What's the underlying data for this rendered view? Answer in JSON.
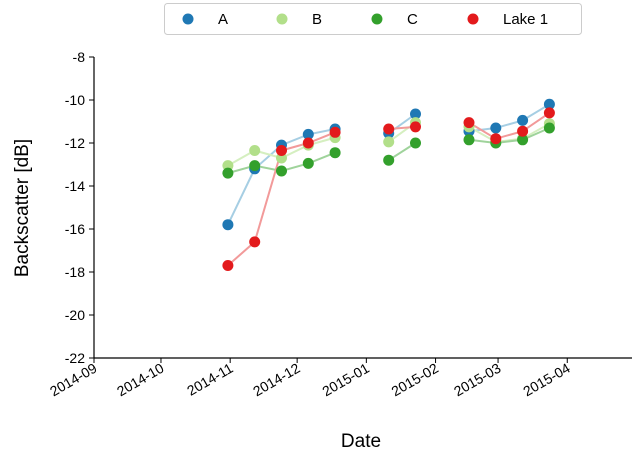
{
  "chart_data": {
    "type": "line",
    "title": "",
    "xlabel": "Date",
    "ylabel": "Backscatter [dB]",
    "ylim": [
      -22,
      -8
    ],
    "yticks": [
      -22,
      -20,
      -18,
      -16,
      -14,
      -12,
      -10,
      -8
    ],
    "xlim": [
      "2014-09-01",
      "2015-04-30"
    ],
    "xticks": [
      "2014-09",
      "2014-10",
      "2014-11",
      "2014-12",
      "2015-01",
      "2015-02",
      "2015-03",
      "2015-04"
    ],
    "grid": false,
    "legend_position": "top-center",
    "series": [
      {
        "name": "A",
        "color": "#1f78b4",
        "line_color": "#a6cee3",
        "points": [
          {
            "x": "2014-10-31",
            "y": -15.8
          },
          {
            "x": "2014-11-12",
            "y": -13.2
          },
          {
            "x": "2014-11-24",
            "y": -12.1
          },
          {
            "x": "2014-12-06",
            "y": -11.6
          },
          {
            "x": "2014-12-18",
            "y": -11.35
          },
          null,
          {
            "x": "2015-01-11",
            "y": -11.55
          },
          {
            "x": "2015-01-23",
            "y": -10.65
          },
          null,
          {
            "x": "2015-02-16",
            "y": -11.45
          },
          {
            "x": "2015-02-28",
            "y": -11.3
          },
          {
            "x": "2015-03-12",
            "y": -10.95
          },
          {
            "x": "2015-03-24",
            "y": -10.2
          }
        ]
      },
      {
        "name": "B",
        "color": "#b2df8a",
        "line_color": "#d5efc0",
        "points": [
          {
            "x": "2014-10-31",
            "y": -13.05
          },
          {
            "x": "2014-11-12",
            "y": -12.35
          },
          {
            "x": "2014-11-24",
            "y": -12.7
          },
          {
            "x": "2014-12-06",
            "y": -12.1
          },
          {
            "x": "2014-12-18",
            "y": -11.75
          },
          null,
          {
            "x": "2015-01-11",
            "y": -11.95
          },
          {
            "x": "2015-01-23",
            "y": -11.05
          },
          null,
          {
            "x": "2015-02-16",
            "y": -11.25
          },
          {
            "x": "2015-02-28",
            "y": -11.95
          },
          {
            "x": "2015-03-12",
            "y": -11.8
          },
          {
            "x": "2015-03-24",
            "y": -11.1
          }
        ]
      },
      {
        "name": "C",
        "color": "#33a02c",
        "line_color": "#9fd39b",
        "points": [
          {
            "x": "2014-10-31",
            "y": -13.4
          },
          {
            "x": "2014-11-12",
            "y": -13.05
          },
          {
            "x": "2014-11-24",
            "y": -13.3
          },
          {
            "x": "2014-12-06",
            "y": -12.95
          },
          {
            "x": "2014-12-18",
            "y": -12.45
          },
          null,
          {
            "x": "2015-01-11",
            "y": -12.8
          },
          {
            "x": "2015-01-23",
            "y": -12.0
          },
          null,
          {
            "x": "2015-02-16",
            "y": -11.85
          },
          {
            "x": "2015-02-28",
            "y": -12.0
          },
          {
            "x": "2015-03-12",
            "y": -11.85
          },
          {
            "x": "2015-03-24",
            "y": -11.3
          }
        ]
      },
      {
        "name": "Lake  1",
        "color": "#e31a1c",
        "line_color": "#f29a9a",
        "points": [
          {
            "x": "2014-10-31",
            "y": -17.7
          },
          {
            "x": "2014-11-12",
            "y": -16.6
          },
          {
            "x": "2014-11-24",
            "y": -12.35
          },
          {
            "x": "2014-12-06",
            "y": -12.0
          },
          {
            "x": "2014-12-18",
            "y": -11.5
          },
          null,
          {
            "x": "2015-01-11",
            "y": -11.35
          },
          {
            "x": "2015-01-23",
            "y": -11.25
          },
          null,
          {
            "x": "2015-02-16",
            "y": -11.05
          },
          {
            "x": "2015-02-28",
            "y": -11.8
          },
          {
            "x": "2015-03-12",
            "y": -11.45
          },
          {
            "x": "2015-03-24",
            "y": -10.6
          }
        ]
      }
    ]
  }
}
